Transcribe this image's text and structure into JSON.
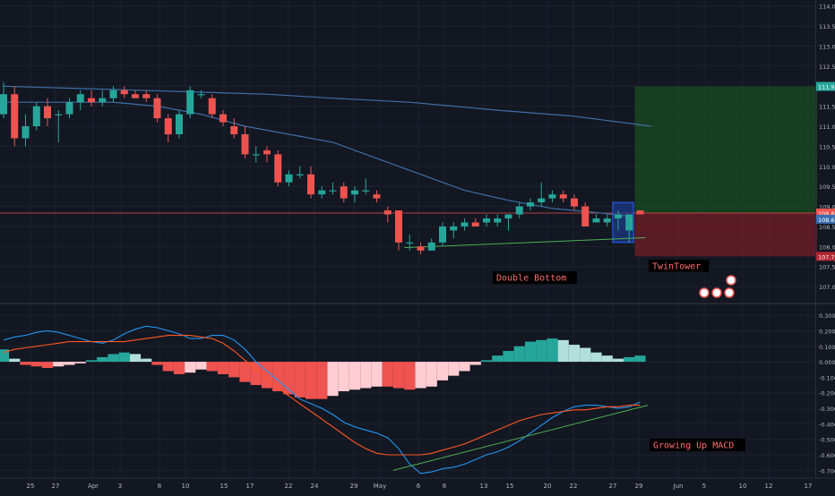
{
  "chart_data": [
    {
      "type": "candlestick",
      "panel": "price",
      "ylim": [
        106.6,
        114.15
      ],
      "price_ticks": [
        "107.000",
        "107.500",
        "108.000",
        "108.500",
        "109.000",
        "109.500",
        "110.000",
        "110.500",
        "111.000",
        "111.500",
        "112.000",
        "112.500",
        "113.000",
        "113.500",
        "114.000"
      ],
      "price_labels": [
        {
          "value": 111.994,
          "text": "111.994",
          "color": "#26a69a"
        },
        {
          "value": 108.835,
          "text": "108.835",
          "color": "#ef5350"
        },
        {
          "value": 108.681,
          "text": "108.681",
          "color": "#3a6fb0"
        },
        {
          "value": 107.754,
          "text": "107.754",
          "color": "#b22833"
        }
      ],
      "candles": [
        {
          "o": 111.3,
          "h": 112.1,
          "l": 111.2,
          "c": 111.8
        },
        {
          "o": 111.8,
          "h": 112.0,
          "l": 110.5,
          "c": 110.7
        },
        {
          "o": 110.7,
          "h": 111.3,
          "l": 110.5,
          "c": 111.0
        },
        {
          "o": 111.0,
          "h": 111.6,
          "l": 110.9,
          "c": 111.5
        },
        {
          "o": 111.5,
          "h": 111.7,
          "l": 111.0,
          "c": 111.2
        },
        {
          "o": 111.3,
          "h": 111.4,
          "l": 110.6,
          "c": 111.3
        },
        {
          "o": 111.3,
          "h": 111.7,
          "l": 111.2,
          "c": 111.6
        },
        {
          "o": 111.6,
          "h": 111.9,
          "l": 111.4,
          "c": 111.8
        },
        {
          "o": 111.7,
          "h": 111.9,
          "l": 111.5,
          "c": 111.6
        },
        {
          "o": 111.6,
          "h": 111.9,
          "l": 111.5,
          "c": 111.7
        },
        {
          "o": 111.7,
          "h": 112.0,
          "l": 111.6,
          "c": 111.9
        },
        {
          "o": 111.9,
          "h": 112.0,
          "l": 111.7,
          "c": 111.8
        },
        {
          "o": 111.8,
          "h": 111.9,
          "l": 111.7,
          "c": 111.7
        },
        {
          "o": 111.8,
          "h": 111.9,
          "l": 111.6,
          "c": 111.7
        },
        {
          "o": 111.7,
          "h": 111.8,
          "l": 111.1,
          "c": 111.2
        },
        {
          "o": 111.2,
          "h": 111.3,
          "l": 110.6,
          "c": 110.8
        },
        {
          "o": 110.8,
          "h": 111.4,
          "l": 110.7,
          "c": 111.3
        },
        {
          "o": 111.3,
          "h": 112.0,
          "l": 111.2,
          "c": 111.9
        },
        {
          "o": 111.8,
          "h": 111.9,
          "l": 111.7,
          "c": 111.8
        },
        {
          "o": 111.7,
          "h": 111.8,
          "l": 111.2,
          "c": 111.3
        },
        {
          "o": 111.3,
          "h": 111.4,
          "l": 111.0,
          "c": 111.1
        },
        {
          "o": 111.0,
          "h": 111.2,
          "l": 110.7,
          "c": 110.8
        },
        {
          "o": 110.8,
          "h": 111.0,
          "l": 110.2,
          "c": 110.3
        },
        {
          "o": 110.3,
          "h": 110.5,
          "l": 110.1,
          "c": 110.3
        },
        {
          "o": 110.4,
          "h": 110.5,
          "l": 110.1,
          "c": 110.3
        },
        {
          "o": 110.3,
          "h": 110.4,
          "l": 109.5,
          "c": 109.6
        },
        {
          "o": 109.6,
          "h": 109.9,
          "l": 109.5,
          "c": 109.8
        },
        {
          "o": 109.8,
          "h": 110.0,
          "l": 109.7,
          "c": 109.8
        },
        {
          "o": 109.8,
          "h": 110.0,
          "l": 109.2,
          "c": 109.3
        },
        {
          "o": 109.3,
          "h": 109.5,
          "l": 109.2,
          "c": 109.4
        },
        {
          "o": 109.4,
          "h": 109.6,
          "l": 109.3,
          "c": 109.4
        },
        {
          "o": 109.5,
          "h": 109.6,
          "l": 109.1,
          "c": 109.2
        },
        {
          "o": 109.3,
          "h": 109.5,
          "l": 109.1,
          "c": 109.4
        },
        {
          "o": 109.4,
          "h": 109.7,
          "l": 109.3,
          "c": 109.4
        },
        {
          "o": 109.3,
          "h": 109.4,
          "l": 109.1,
          "c": 109.2
        },
        {
          "o": 108.9,
          "h": 109.0,
          "l": 108.6,
          "c": 108.8
        },
        {
          "o": 108.9,
          "h": 108.9,
          "l": 107.9,
          "c": 108.1
        },
        {
          "o": 108.1,
          "h": 108.3,
          "l": 107.9,
          "c": 108.1
        },
        {
          "o": 108.0,
          "h": 108.1,
          "l": 107.8,
          "c": 107.9
        },
        {
          "o": 107.9,
          "h": 108.2,
          "l": 107.9,
          "c": 108.1
        },
        {
          "o": 108.1,
          "h": 108.6,
          "l": 108.0,
          "c": 108.5
        },
        {
          "o": 108.4,
          "h": 108.6,
          "l": 108.2,
          "c": 108.5
        },
        {
          "o": 108.5,
          "h": 108.7,
          "l": 108.4,
          "c": 108.6
        },
        {
          "o": 108.6,
          "h": 108.7,
          "l": 108.5,
          "c": 108.5
        },
        {
          "o": 108.6,
          "h": 108.8,
          "l": 108.5,
          "c": 108.7
        },
        {
          "o": 108.6,
          "h": 108.8,
          "l": 108.5,
          "c": 108.7
        },
        {
          "o": 108.7,
          "h": 108.8,
          "l": 108.4,
          "c": 108.8
        },
        {
          "o": 108.8,
          "h": 109.1,
          "l": 108.7,
          "c": 109.0
        },
        {
          "o": 109.0,
          "h": 109.2,
          "l": 108.9,
          "c": 109.1
        },
        {
          "o": 109.1,
          "h": 109.6,
          "l": 109.0,
          "c": 109.2
        },
        {
          "o": 109.2,
          "h": 109.4,
          "l": 109.1,
          "c": 109.3
        },
        {
          "o": 109.3,
          "h": 109.4,
          "l": 109.1,
          "c": 109.2
        },
        {
          "o": 109.2,
          "h": 109.3,
          "l": 108.9,
          "c": 109.0
        },
        {
          "o": 109.0,
          "h": 109.1,
          "l": 108.5,
          "c": 108.5
        },
        {
          "o": 108.6,
          "h": 108.8,
          "l": 108.6,
          "c": 108.7
        },
        {
          "o": 108.6,
          "h": 108.8,
          "l": 108.5,
          "c": 108.7
        },
        {
          "o": 108.7,
          "h": 108.9,
          "l": 108.4,
          "c": 108.8
        },
        {
          "o": 108.4,
          "h": 108.8,
          "l": 108.1,
          "c": 108.8
        },
        {
          "o": 108.9,
          "h": 108.9,
          "l": 108.8,
          "c": 108.8
        }
      ],
      "lines": [
        {
          "name": "ma-long",
          "color": "#3d6fa8",
          "points": [
            [
              0,
              112.0
            ],
            [
              12,
              111.9
            ],
            [
              24,
              111.8
            ],
            [
              30,
              111.7
            ],
            [
              37,
              111.6
            ],
            [
              45,
              111.4
            ],
            [
              52,
              111.25
            ],
            [
              59,
              111.0
            ]
          ]
        },
        {
          "name": "ma-short",
          "color": "#3d6fa8",
          "points": [
            [
              0,
              111.6
            ],
            [
              5,
              111.6
            ],
            [
              10,
              111.6
            ],
            [
              14,
              111.5
            ],
            [
              18,
              111.3
            ],
            [
              22,
              111.0
            ],
            [
              26,
              110.8
            ],
            [
              30,
              110.6
            ],
            [
              33,
              110.3
            ],
            [
              36,
              110.0
            ],
            [
              39,
              109.7
            ],
            [
              42,
              109.4
            ],
            [
              46,
              109.15
            ],
            [
              50,
              108.95
            ],
            [
              54,
              108.85
            ],
            [
              57,
              108.75
            ]
          ]
        }
      ],
      "position": {
        "entry": 108.835,
        "target": 111.994,
        "stop": 107.754,
        "start_index": 58
      },
      "support_line": [
        {
          "i": 36.5,
          "v": 107.97
        },
        {
          "i": 58.5,
          "v": 108.22
        }
      ],
      "twin_tower_box": {
        "from": 55.5,
        "to": 57.4,
        "low": 108.1,
        "high": 109.1
      },
      "annotations": [
        "Double Bottom",
        "TwinTower"
      ]
    },
    {
      "type": "bar",
      "panel": "macd",
      "ylim": [
        -0.75,
        0.37
      ],
      "macd_ticks": [
        "0.300",
        "0.200",
        "0.100",
        "0.000",
        "-0.100",
        "-0.200",
        "-0.300",
        "-0.400",
        "-0.500",
        "-0.600",
        "-0.700"
      ],
      "histogram": [
        0.08,
        0.02,
        -0.02,
        -0.03,
        -0.04,
        -0.03,
        -0.02,
        -0.01,
        0.01,
        0.03,
        0.05,
        0.06,
        0.05,
        0.02,
        -0.02,
        -0.06,
        -0.08,
        -0.07,
        -0.05,
        -0.06,
        -0.08,
        -0.1,
        -0.13,
        -0.15,
        -0.17,
        -0.19,
        -0.21,
        -0.23,
        -0.24,
        -0.24,
        -0.22,
        -0.19,
        -0.18,
        -0.17,
        -0.16,
        -0.16,
        -0.17,
        -0.18,
        -0.17,
        -0.16,
        -0.12,
        -0.09,
        -0.06,
        -0.02,
        0.01,
        0.04,
        0.07,
        0.1,
        0.13,
        0.14,
        0.15,
        0.14,
        0.11,
        0.09,
        0.06,
        0.04,
        0.02,
        0.03,
        0.04
      ],
      "macd_line": [
        0.14,
        0.16,
        0.17,
        0.19,
        0.2,
        0.19,
        0.17,
        0.15,
        0.13,
        0.12,
        0.14,
        0.18,
        0.21,
        0.23,
        0.22,
        0.2,
        0.18,
        0.15,
        0.15,
        0.17,
        0.17,
        0.14,
        0.08,
        0.0,
        -0.06,
        -0.12,
        -0.18,
        -0.24,
        -0.27,
        -0.3,
        -0.34,
        -0.39,
        -0.42,
        -0.44,
        -0.46,
        -0.49,
        -0.56,
        -0.66,
        -0.72,
        -0.71,
        -0.69,
        -0.68,
        -0.66,
        -0.63,
        -0.6,
        -0.58,
        -0.55,
        -0.51,
        -0.46,
        -0.41,
        -0.36,
        -0.32,
        -0.29,
        -0.28,
        -0.28,
        -0.29,
        -0.3,
        -0.29,
        -0.26
      ],
      "signal_line": [
        0.06,
        0.08,
        0.09,
        0.1,
        0.11,
        0.12,
        0.13,
        0.13,
        0.13,
        0.13,
        0.13,
        0.13,
        0.14,
        0.15,
        0.16,
        0.17,
        0.17,
        0.17,
        0.16,
        0.15,
        0.12,
        0.07,
        0.01,
        -0.05,
        -0.11,
        -0.17,
        -0.22,
        -0.27,
        -0.32,
        -0.37,
        -0.42,
        -0.47,
        -0.52,
        -0.56,
        -0.59,
        -0.6,
        -0.6,
        -0.6,
        -0.6,
        -0.59,
        -0.57,
        -0.55,
        -0.53,
        -0.5,
        -0.47,
        -0.44,
        -0.41,
        -0.38,
        -0.36,
        -0.34,
        -0.33,
        -0.32,
        -0.31,
        -0.31,
        -0.3,
        -0.29,
        -0.29,
        -0.28,
        -0.28
      ],
      "trend_line": [
        {
          "i": 35.5,
          "v": -0.7
        },
        {
          "i": 58.7,
          "v": -0.28
        }
      ],
      "annotation": "Growing Up MACD"
    }
  ],
  "x_axis": {
    "labels": [
      "25",
      "27",
      "Apr",
      "3",
      "8",
      "10",
      "15",
      "17",
      "22",
      "24",
      "29",
      "May",
      "6",
      "8",
      "13",
      "15",
      "20",
      "22",
      "27",
      "29",
      "Jun",
      "5",
      "10",
      "12",
      "17"
    ]
  },
  "colors": {
    "up": "#26a69a",
    "down": "#ef5350",
    "hist_up_strong": "#26a69a",
    "hist_up_weak": "#b2dfdb",
    "hist_down_strong": "#ef5350",
    "hist_down_weak": "#ffcdd2"
  }
}
